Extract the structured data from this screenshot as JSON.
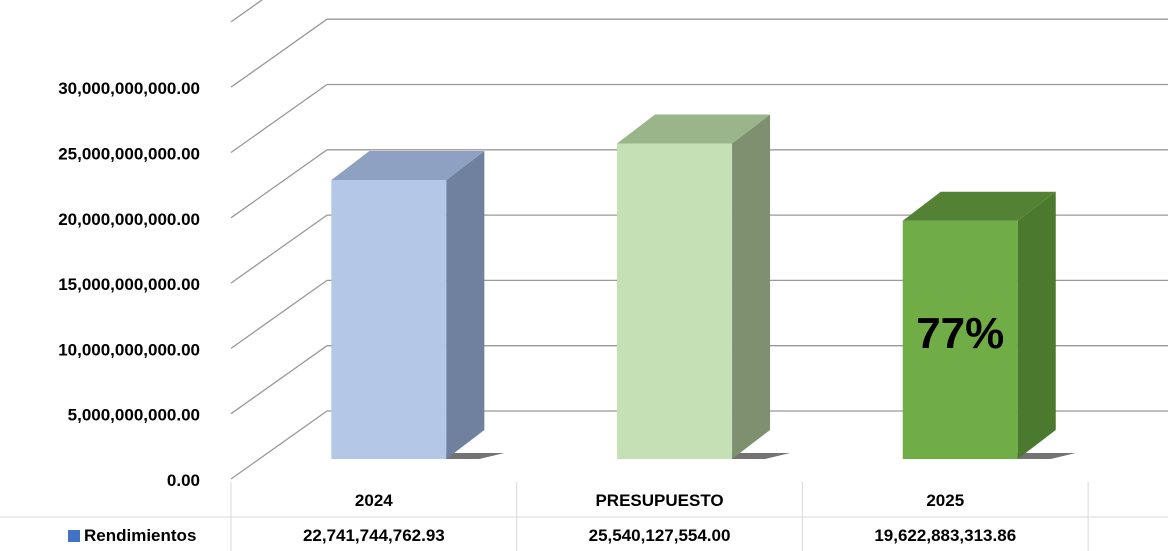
{
  "chart_data": {
    "type": "bar",
    "categories": [
      "2024",
      "PRESUPUESTO",
      "2025"
    ],
    "series": [
      {
        "name": "Rendimientos",
        "values": [
          22741744762.93,
          25540127554.0,
          19622883313.86
        ]
      }
    ],
    "value_labels": [
      "22,741,744,762.93",
      "25,540,127,554.00",
      "19,622,883,313.86"
    ],
    "ylim": [
      0,
      35000000000
    ],
    "y_ticks": [
      0,
      5000000000,
      10000000000,
      15000000000,
      20000000000,
      25000000000,
      30000000000
    ],
    "y_tick_labels": [
      "0.00",
      "5,000,000,000.00",
      "10,000,000,000.00",
      "15,000,000,000.00",
      "20,000,000,000.00",
      "25,000,000,000.00",
      "30,000,000,000.00"
    ],
    "annotation": "77%",
    "grid": true,
    "style": "3d-column-with-data-table",
    "colors": {
      "bar_fronts": [
        "#b4c7e7",
        "#c5e0b4",
        "#70ad47"
      ],
      "bar_sides": [
        "#7081a0",
        "#7f9070",
        "#4b7a2e"
      ],
      "bar_tops": [
        "#8fa1c2",
        "#9ab58a",
        "#548235"
      ],
      "legend_key": "#4472c4",
      "grid": "#999999",
      "table_border": "#d9d9d9"
    }
  }
}
